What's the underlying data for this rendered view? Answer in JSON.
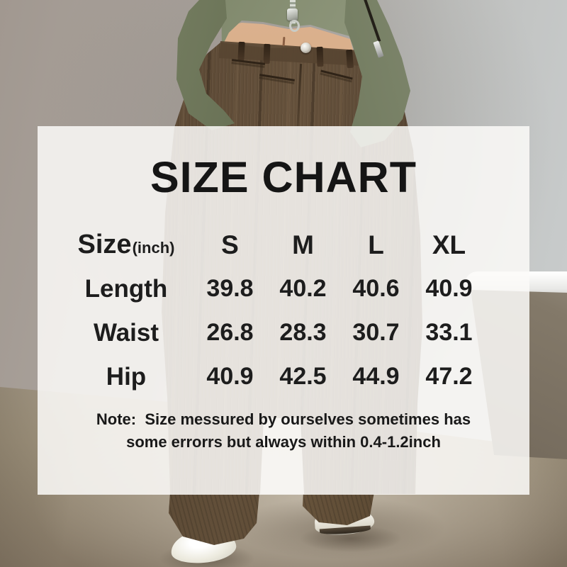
{
  "palette": {
    "overlay_bg": "#f4f2f0",
    "text": "#1a1a1a",
    "wall_left_gray": "#a59d96",
    "wall_right_gray": "#c9cdce",
    "floor_tan": "#b3a898",
    "jacket_green": "#747d60",
    "skin_tan": "#cfa181",
    "pants_brown": "#53422f",
    "shoe_white": "#f2efe9"
  },
  "overlay": {
    "title": "SIZE CHART",
    "table": {
      "size_label": "Size",
      "unit_suffix": "(inch)",
      "columns": [
        "S",
        "M",
        "L",
        "XL"
      ],
      "rows": [
        {
          "label": "Length",
          "values": [
            "39.8",
            "40.2",
            "40.6",
            "40.9"
          ]
        },
        {
          "label": "Waist",
          "values": [
            "26.8",
            "28.3",
            "30.7",
            "33.1"
          ]
        },
        {
          "label": "Hip",
          "values": [
            "40.9",
            "42.5",
            "44.9",
            "47.2"
          ]
        }
      ]
    },
    "note_line1": "Note:  Size messured by ourselves sometimes has",
    "note_line2": "some errorrs but always within 0.4-1.2inch"
  },
  "chart_data": {
    "type": "table",
    "title": "SIZE CHART",
    "unit": "inch",
    "columns": [
      "Size(inch)",
      "S",
      "M",
      "L",
      "XL"
    ],
    "rows": [
      [
        "Length",
        39.8,
        40.2,
        40.6,
        40.9
      ],
      [
        "Waist",
        26.8,
        28.3,
        30.7,
        33.1
      ],
      [
        "Hip",
        40.9,
        42.5,
        44.9,
        47.2
      ]
    ],
    "note": "Note: Size messured by ourselves sometimes has some errorrs but always within 0.4-1.2inch"
  },
  "photo": {
    "description": "Model in sage-green cropped zip jacket and brown corduroy wide-leg pants, hands in pockets, white sneakers, studio backdrop with white bench"
  }
}
